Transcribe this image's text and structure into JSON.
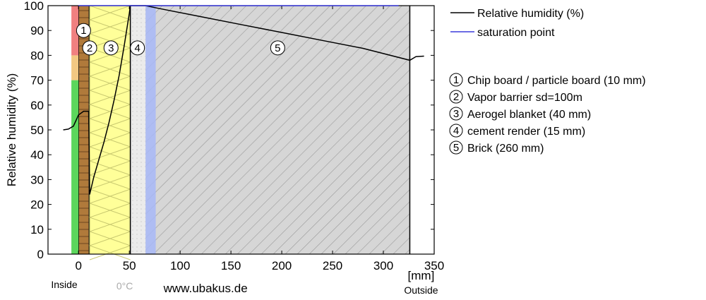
{
  "chart_data": {
    "type": "line",
    "ylabel": "Relative humidity (%)",
    "xlabel": "[mm]",
    "xlim": [
      -30,
      350
    ],
    "ylim": [
      0,
      100
    ],
    "x_ticks": [
      0,
      50,
      100,
      150,
      200,
      250,
      300,
      350
    ],
    "y_ticks": [
      0,
      10,
      20,
      30,
      40,
      50,
      60,
      70,
      80,
      90,
      100
    ],
    "grid": false,
    "legend_position": "right",
    "legend": [
      {
        "label": "Relative humidity (%)",
        "color": "#000000"
      },
      {
        "label": "saturation point",
        "color": "#3b3bdc"
      }
    ],
    "series": [
      {
        "name": "Relative humidity (%)",
        "color": "#000000",
        "x": [
          -15,
          -10,
          -5,
          0,
          5,
          10,
          11,
          15,
          20,
          25,
          30,
          35,
          40,
          45,
          50,
          51,
          66,
          80,
          120,
          160,
          200,
          240,
          280,
          326,
          332,
          340
        ],
        "y": [
          50,
          50.3,
          51.5,
          56,
          57.5,
          57.5,
          24,
          31,
          38,
          45,
          53,
          62,
          72,
          84,
          97,
          100,
          100,
          98.8,
          95.6,
          92.4,
          89.2,
          86,
          82.8,
          78,
          79.5,
          79.7
        ]
      },
      {
        "name": "saturation point",
        "color": "#3b3bdc",
        "x": [
          0,
          315
        ],
        "y": [
          100,
          100
        ]
      }
    ],
    "comfort_bar": [
      {
        "from": 0,
        "to": 70,
        "color": "#5cd65c"
      },
      {
        "from": 70,
        "to": 80,
        "color": "#f2c882"
      },
      {
        "from": 80,
        "to": 100,
        "color": "#f08080"
      }
    ],
    "layers": [
      {
        "number": "1",
        "name": "Chip board / particle board (10 mm)",
        "x_from": 0,
        "x_to": 10,
        "fill": "#b07a3b"
      },
      {
        "number": "2",
        "name": "Vapor barrier sd=100m",
        "x_from": 10,
        "x_to": 11,
        "fill": "#000000"
      },
      {
        "number": "3",
        "name": "Aerogel blanket (40 mm)",
        "x_from": 11,
        "x_to": 51,
        "fill": "#ffff99"
      },
      {
        "number": "4",
        "name": "cement render (15 mm)",
        "x_from": 51,
        "x_to": 66,
        "fill": "#e8e8e8"
      },
      {
        "number": "5",
        "name": "Brick (260 mm)",
        "x_from": 66,
        "x_to": 326,
        "fill": "#d3d3d3"
      }
    ],
    "dew_zone": {
      "x_from": 66,
      "x_to": 76,
      "color": "#a8b8f8"
    },
    "annotations": {
      "inside": "Inside",
      "outside": "Outside",
      "zero_celsius": "0°C",
      "zero_celsius_x": 51,
      "website": "www.ubakus.de"
    }
  }
}
